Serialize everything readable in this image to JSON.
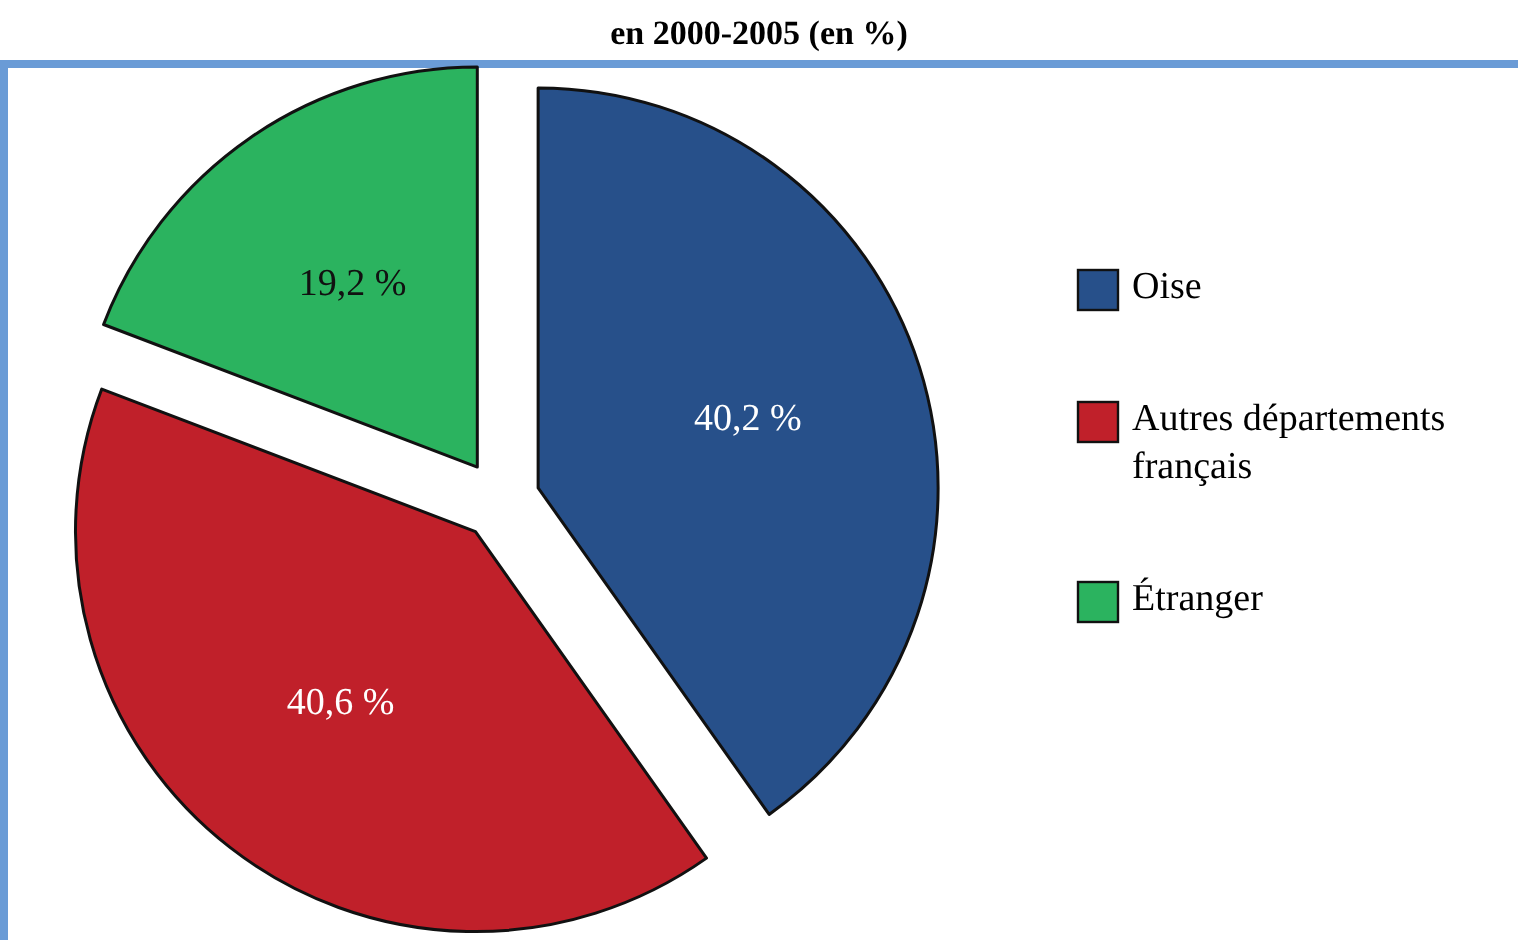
{
  "chart_data": {
    "type": "pie",
    "title": "en 2000-2005 (en %)",
    "categories": [
      "Oise",
      "Autres départements français",
      "Étranger"
    ],
    "values": [
      40.2,
      40.6,
      19.2
    ],
    "colors": [
      "#27508a",
      "#c0202a",
      "#2bb35f"
    ],
    "value_labels": [
      "40,2 %",
      "40,6 %",
      "19,2 %"
    ],
    "legend": "right"
  }
}
